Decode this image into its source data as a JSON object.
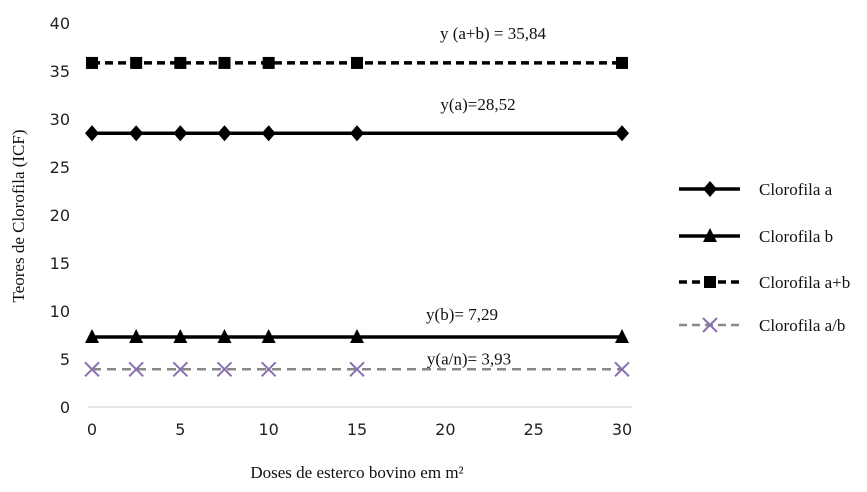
{
  "chart_data": {
    "type": "line",
    "title": "",
    "xlabel": "Doses de esterco bovino em m²",
    "ylabel": "Teores de Clorofila (ICF)",
    "x": [
      0,
      2.5,
      5,
      7.5,
      10,
      15,
      30
    ],
    "x_ticks": [
      "0",
      "5",
      "10",
      "15",
      "20",
      "25",
      "30"
    ],
    "y_ticks": [
      "0",
      "5",
      "10",
      "15",
      "20",
      "25",
      "30",
      "35",
      "40"
    ],
    "xlim": [
      0,
      30
    ],
    "ylim": [
      0,
      40
    ],
    "grid": false,
    "legend_position": "right",
    "series": [
      {
        "name": "Clorofila a",
        "values": [
          28.52,
          28.52,
          28.52,
          28.52,
          28.52,
          28.52,
          28.52
        ],
        "marker": "diamond",
        "line": "solid",
        "color": "#000000"
      },
      {
        "name": "Clorofila b",
        "values": [
          7.29,
          7.29,
          7.29,
          7.29,
          7.29,
          7.29,
          7.29
        ],
        "marker": "triangle",
        "line": "solid",
        "color": "#000000"
      },
      {
        "name": "Clorofila a+b",
        "values": [
          35.84,
          35.84,
          35.84,
          35.84,
          35.84,
          35.84,
          35.84
        ],
        "marker": "square",
        "line": "dashed",
        "color": "#000000"
      },
      {
        "name": "Clorofila a/b",
        "values": [
          3.93,
          3.93,
          3.93,
          3.93,
          3.93,
          3.93,
          3.93
        ],
        "marker": "x",
        "line": "dashed",
        "color": "#888888",
        "marker_color": "#8a6fb0"
      }
    ],
    "annotations": [
      {
        "text": "y (a+b) = 35,84",
        "series": "Clorofila a+b"
      },
      {
        "text": "y(a)=28,52",
        "series": "Clorofila a"
      },
      {
        "text": "y(b)= 7,29",
        "series": "Clorofila b"
      },
      {
        "text": "y(a/n)= 3,93",
        "series": "Clorofila a/b"
      }
    ]
  }
}
